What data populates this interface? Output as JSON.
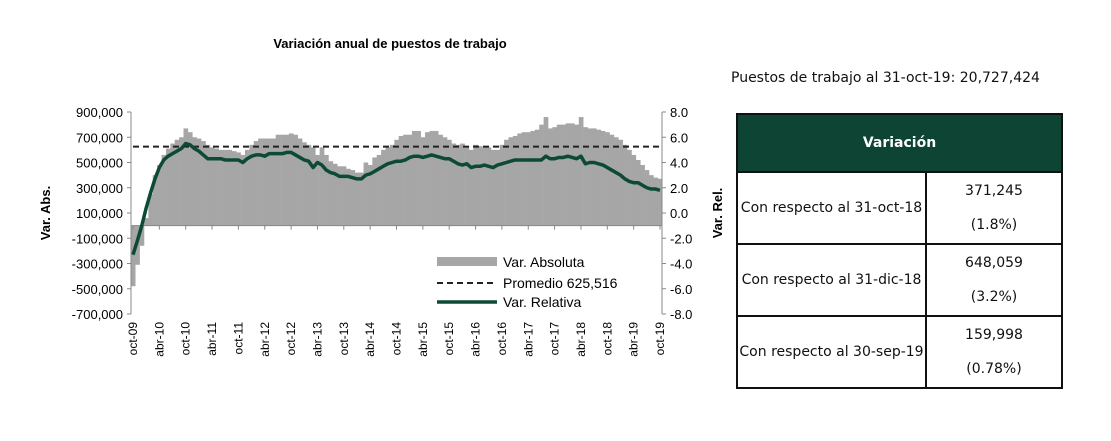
{
  "chart_data": {
    "type": "bar+line",
    "title": "Variación anual de puestos de trabajo",
    "ylabel_left": "Var. Abs.",
    "ylabel_right": "Var. Rel.",
    "ylim_left": [
      -700000,
      900000
    ],
    "ylim_right": [
      -8.0,
      8.0
    ],
    "yticks_left": [
      "900,000",
      "700,000",
      "500,000",
      "300,000",
      "100,000",
      "-100,000",
      "-300,000",
      "-500,000",
      "-700,000"
    ],
    "yticks_right": [
      "8.0",
      "6.0",
      "4.0",
      "2.0",
      "0.0",
      "-2.0",
      "-4.0",
      "-6.0",
      "-8.0"
    ],
    "xtick_labels": [
      "oct-09",
      "abr-10",
      "oct-10",
      "abr-11",
      "oct-11",
      "abr-12",
      "oct-12",
      "abr-13",
      "oct-13",
      "abr-14",
      "oct-14",
      "abr-15",
      "oct-15",
      "abr-16",
      "oct-16",
      "abr-17",
      "oct-17",
      "abr-18",
      "oct-18",
      "abr-19",
      "oct-19"
    ],
    "period": "monthly, oct-09 to oct-19",
    "grid": false,
    "legend_position": "bottom-right inside plot",
    "series": [
      {
        "name": "Var. Absoluta",
        "type": "bar",
        "color": "#a6a6a6",
        "values": [
          -480000,
          -310000,
          -160000,
          60000,
          250000,
          400000,
          480000,
          560000,
          610000,
          650000,
          680000,
          700000,
          770000,
          740000,
          700000,
          690000,
          670000,
          640000,
          620000,
          610000,
          600000,
          600000,
          600000,
          590000,
          580000,
          560000,
          600000,
          640000,
          670000,
          690000,
          690000,
          690000,
          690000,
          720000,
          720000,
          720000,
          730000,
          720000,
          690000,
          660000,
          640000,
          620000,
          560000,
          620000,
          560000,
          510000,
          490000,
          470000,
          470000,
          450000,
          440000,
          420000,
          420000,
          500000,
          480000,
          540000,
          560000,
          600000,
          620000,
          640000,
          680000,
          710000,
          720000,
          720000,
          750000,
          750000,
          700000,
          740000,
          750000,
          750000,
          720000,
          700000,
          680000,
          650000,
          640000,
          650000,
          630000,
          600000,
          640000,
          630000,
          620000,
          620000,
          600000,
          600000,
          640000,
          680000,
          700000,
          710000,
          730000,
          740000,
          740000,
          750000,
          760000,
          800000,
          860000,
          770000,
          780000,
          800000,
          800000,
          810000,
          810000,
          800000,
          860000,
          780000,
          770000,
          770000,
          760000,
          750000,
          740000,
          720000,
          700000,
          680000,
          640000,
          600000,
          560000,
          520000,
          480000,
          440000,
          400000,
          380000,
          371245
        ]
      },
      {
        "name": "Promedio 625,516",
        "type": "hline",
        "color": "#222222",
        "value": 625516
      },
      {
        "name": "Var. Relativa",
        "type": "line",
        "color": "#0d4a36",
        "axis": "right",
        "values": [
          -3.3,
          -2.2,
          -1.0,
          0.4,
          1.6,
          2.7,
          3.6,
          4.2,
          4.5,
          4.7,
          4.9,
          5.1,
          5.5,
          5.4,
          5.1,
          4.9,
          4.6,
          4.3,
          4.3,
          4.3,
          4.3,
          4.2,
          4.2,
          4.2,
          4.2,
          4.0,
          4.3,
          4.5,
          4.6,
          4.6,
          4.5,
          4.7,
          4.7,
          4.7,
          4.7,
          4.8,
          4.8,
          4.6,
          4.4,
          4.2,
          4.1,
          3.6,
          4.0,
          3.8,
          3.4,
          3.2,
          3.1,
          2.9,
          2.9,
          2.9,
          2.8,
          2.7,
          2.7,
          3.0,
          3.1,
          3.3,
          3.5,
          3.7,
          3.9,
          4.0,
          4.1,
          4.1,
          4.2,
          4.4,
          4.5,
          4.5,
          4.4,
          4.5,
          4.6,
          4.5,
          4.4,
          4.3,
          4.3,
          4.1,
          3.9,
          3.8,
          3.9,
          3.6,
          3.7,
          3.7,
          3.8,
          3.7,
          3.6,
          3.8,
          3.9,
          4.0,
          4.1,
          4.2,
          4.2,
          4.2,
          4.2,
          4.2,
          4.2,
          4.2,
          4.5,
          4.3,
          4.3,
          4.4,
          4.4,
          4.5,
          4.4,
          4.3,
          4.5,
          3.9,
          4.0,
          4.0,
          3.9,
          3.8,
          3.6,
          3.4,
          3.2,
          3.0,
          2.7,
          2.5,
          2.4,
          2.4,
          2.2,
          2.0,
          1.9,
          1.9,
          1.8
        ]
      }
    ]
  },
  "summary": {
    "jobs_total": "Puestos de trabajo al 31-oct-19: 20,727,424"
  },
  "table": {
    "header": "Variación",
    "rows": [
      {
        "label": "Con respecto al 31-oct-18",
        "value": "371,245",
        "pct": "(1.8%)"
      },
      {
        "label": "Con respecto al 31-dic-18",
        "value": "648,059",
        "pct": "(3.2%)"
      },
      {
        "label": "Con respecto al 30-sep-19",
        "value": "159,998",
        "pct": "(0.78%)"
      }
    ]
  },
  "colors": {
    "header_bg": "#0d4433",
    "bars": "#a6a6a6",
    "line": "#0d4a36"
  }
}
